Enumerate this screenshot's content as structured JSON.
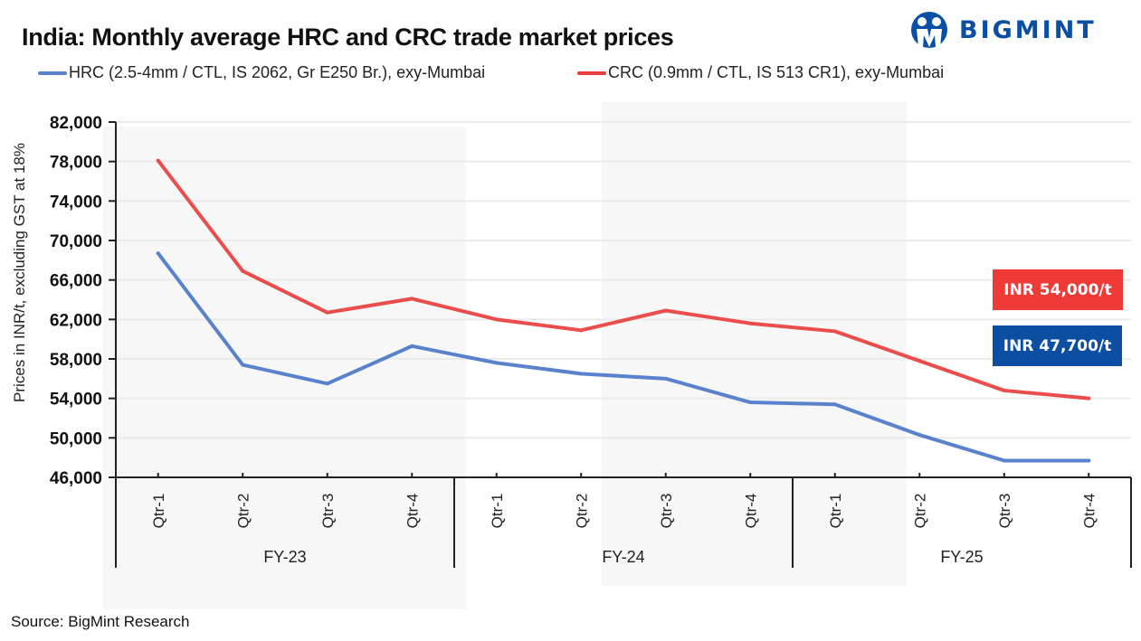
{
  "header": {
    "title": "India: Monthly average HRC and CRC trade market prices",
    "logo_text": "BIGMINT",
    "logo_color": "#0a4fa3"
  },
  "footer": {
    "source": "Source: BigMint Research"
  },
  "annotations": [
    {
      "text": "INR 54,000/t",
      "color": "#ee3b38",
      "series": "CRC"
    },
    {
      "text": "INR 47,700/t",
      "color": "#0b4ea2",
      "series": "HRC"
    }
  ],
  "chart_data": {
    "type": "line",
    "title": "India: Monthly average HRC and CRC trade market prices",
    "xlabel": "",
    "ylabel": "Prices in INR/t, excluding GST at 18%",
    "ylim": [
      46000,
      82000
    ],
    "yticks": [
      46000,
      50000,
      54000,
      58000,
      62000,
      66000,
      70000,
      74000,
      78000,
      82000
    ],
    "ytick_labels": [
      "46,000",
      "50,000",
      "54,000",
      "58,000",
      "62,000",
      "66,000",
      "70,000",
      "74,000",
      "78,000",
      "82,000"
    ],
    "grid": true,
    "legend_position": "top-left",
    "categories": [
      "Qtr-1",
      "Qtr-2",
      "Qtr-3",
      "Qtr-4",
      "Qtr-1",
      "Qtr-2",
      "Qtr-3",
      "Qtr-4",
      "Qtr-1",
      "Qtr-2",
      "Qtr-3",
      "Qtr-4"
    ],
    "groups": [
      {
        "label": "FY-23",
        "count": 4,
        "shaded": true
      },
      {
        "label": "FY-24",
        "count": 4,
        "shaded": false
      },
      {
        "label": "FY-25",
        "count": 4,
        "shaded": false
      }
    ],
    "series": [
      {
        "name": "HRC (2.5-4mm / CTL, IS 2062, Gr E250 Br.), exy-Mumbai",
        "color": "#5a82cc",
        "values": [
          68700,
          57400,
          55500,
          59300,
          57600,
          56500,
          56000,
          53600,
          53400,
          50300,
          47700,
          47700
        ]
      },
      {
        "name": "CRC (0.9mm / CTL, IS 513 CR1), exy-Mumbai",
        "color": "#ea4d4b",
        "values": [
          78100,
          66900,
          62700,
          64100,
          62000,
          60900,
          62900,
          61600,
          60800,
          57800,
          54800,
          54000
        ]
      }
    ]
  }
}
